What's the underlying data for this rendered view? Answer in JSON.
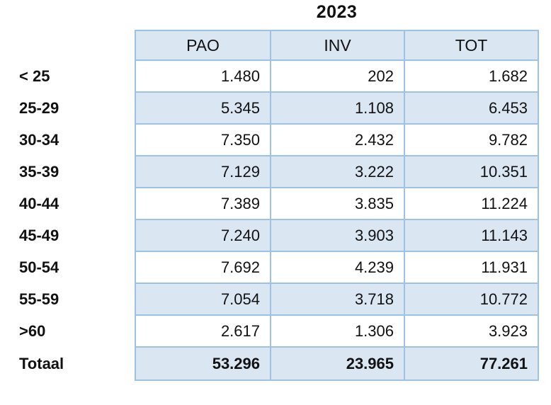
{
  "title": "2023",
  "table": {
    "columns": [
      "PAO",
      "INV",
      "TOT"
    ],
    "rows": [
      {
        "label": "< 25",
        "values": [
          "1.480",
          "202",
          "1.682"
        ]
      },
      {
        "label": "25-29",
        "values": [
          "5.345",
          "1.108",
          "6.453"
        ]
      },
      {
        "label": "30-34",
        "values": [
          "7.350",
          "2.432",
          "9.782"
        ]
      },
      {
        "label": "35-39",
        "values": [
          "7.129",
          "3.222",
          "10.351"
        ]
      },
      {
        "label": "40-44",
        "values": [
          "7.389",
          "3.835",
          "11.224"
        ]
      },
      {
        "label": "45-49",
        "values": [
          "7.240",
          "3.903",
          "11.143"
        ]
      },
      {
        "label": "50-54",
        "values": [
          "7.692",
          "4.239",
          "11.931"
        ]
      },
      {
        "label": "55-59",
        "values": [
          "7.054",
          "3.718",
          "10.772"
        ]
      },
      {
        "label": ">60",
        "values": [
          "2.617",
          "1.306",
          "3.923"
        ]
      },
      {
        "label": "Totaal",
        "values": [
          "53.296",
          "23.965",
          "77.261"
        ],
        "is_total": true
      }
    ]
  },
  "colors": {
    "cell_fill": "#dbe6f3",
    "border": "#9ec2e3",
    "text": "#111111"
  },
  "chart_data": {
    "type": "table",
    "title": "2023",
    "columns": [
      "PAO",
      "INV",
      "TOT"
    ],
    "categories": [
      "< 25",
      "25-29",
      "30-34",
      "35-39",
      "40-44",
      "45-49",
      "50-54",
      "55-59",
      ">60",
      "Totaal"
    ],
    "series": [
      {
        "name": "PAO",
        "values": [
          1480,
          5345,
          7350,
          7129,
          7389,
          7240,
          7692,
          7054,
          2617,
          53296
        ]
      },
      {
        "name": "INV",
        "values": [
          202,
          1108,
          2432,
          3222,
          3835,
          3903,
          4239,
          3718,
          1306,
          23965
        ]
      },
      {
        "name": "TOT",
        "values": [
          1682,
          6453,
          9782,
          10351,
          11224,
          11143,
          11931,
          10772,
          3923,
          77261
        ]
      }
    ],
    "notes": "Age-group distribution table; last category row is the column total (Totaal); numbers use Dutch thousands separator (.)"
  }
}
